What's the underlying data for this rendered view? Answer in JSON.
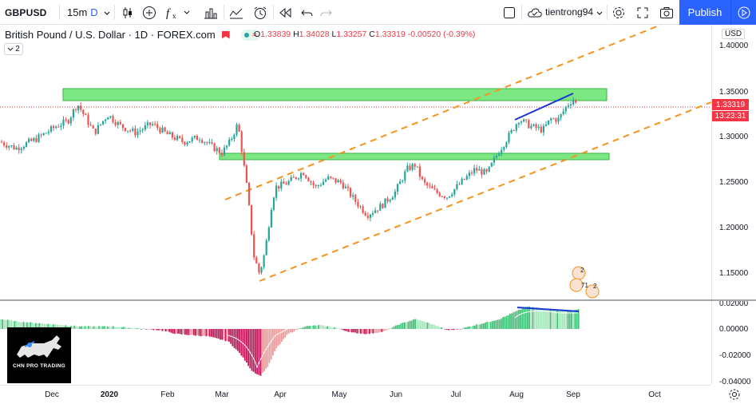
{
  "toolbar": {
    "symbol": "GBPUSD",
    "interval": "15m",
    "interval_badge": "D",
    "user": "tientrong94",
    "publish_label": "Publish"
  },
  "legend": {
    "title": "British Pound / U.S. Dollar · 1D · FOREX.com",
    "o_label": "O",
    "o_value": "1.33839",
    "h_label": "H",
    "h_value": "1.34028",
    "l_label": "L",
    "l_value": "1.33257",
    "c_label": "C",
    "c_value": "1.33319",
    "change": "-0.00520 (-0.39%)",
    "collapse_count": "2"
  },
  "price_axis": {
    "currency": "USD",
    "ticks": [
      "1.40000",
      "1.35000",
      "1.30000",
      "1.25000",
      "1.20000",
      "1.15000"
    ],
    "last_price": "1.33319",
    "countdown": "13:23:31"
  },
  "osc_axis": {
    "ticks": [
      "0.02000",
      "0.00000",
      "-0.02000",
      "-0.04000"
    ]
  },
  "time_axis": {
    "ticks": [
      "Dec",
      "2020",
      "Feb",
      "Mar",
      "Apr",
      "May",
      "Jun",
      "Jul",
      "Aug",
      "Sep",
      "Oct"
    ]
  },
  "events": {
    "top_count": "2",
    "bottom_left": "71",
    "bottom_right": "2"
  },
  "logo": {
    "name": "CHN PRO TRADING"
  },
  "colors": {
    "up": "#26a69a",
    "down": "#ef5350",
    "zone": "#66e36e",
    "channel": "#f7931e",
    "divergence": "#1a36d6",
    "accent": "#2962ff"
  },
  "icons": {
    "chevron": "chevron-down-icon",
    "candles": "candles-icon",
    "add": "plus-circle-icon",
    "indicators": "fx-icon",
    "bars": "bar-chart-icon",
    "compare": "compare-icon",
    "alert": "alarm-icon",
    "replay": "replay-icon",
    "undo": "undo-icon",
    "redo": "redo-icon",
    "layout": "square-icon",
    "cloud": "cloud-icon",
    "settings": "gear-icon",
    "fullscreen": "fullscreen-icon",
    "snapshot": "camera-icon",
    "play": "play-icon"
  }
}
